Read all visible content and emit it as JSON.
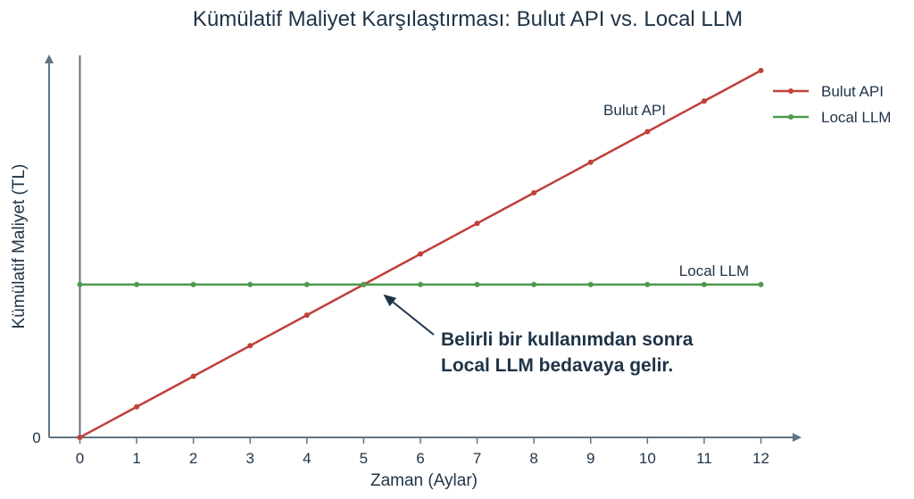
{
  "chart_data": {
    "type": "line",
    "title": "Kümülatif Maliyet Karşılaştırması: Bulut API vs. Local LLM",
    "xlabel": "Zaman (Aylar)",
    "ylabel": "Kümülatif Maliyet (TL)",
    "x": [
      0,
      1,
      2,
      3,
      4,
      5,
      6,
      7,
      8,
      9,
      10,
      11,
      12
    ],
    "xlim": [
      0,
      12
    ],
    "ylim": [
      0,
      12.7
    ],
    "y_tick_labels": [
      "0"
    ],
    "y_ticks": [
      0
    ],
    "grid": false,
    "legend": "top-right",
    "series": [
      {
        "name": "Bulut API",
        "color": "#c0403a",
        "values": [
          0,
          1,
          2,
          3,
          4,
          5,
          6,
          7,
          8,
          9,
          10,
          11,
          12
        ],
        "label_text": "Bulut API"
      },
      {
        "name": "Local LLM",
        "color": "#4e9a4e",
        "values": [
          5,
          5,
          5,
          5,
          5,
          5,
          5,
          5,
          5,
          5,
          5,
          5,
          5
        ],
        "label_text": "Local LLM"
      }
    ],
    "annotation": {
      "lines": [
        "Belirli bir kullanımdan sonra",
        "Local LLM bedavaya gelir."
      ],
      "point_x": 5,
      "point_y": 5
    },
    "axis_color": "#5f7485"
  }
}
